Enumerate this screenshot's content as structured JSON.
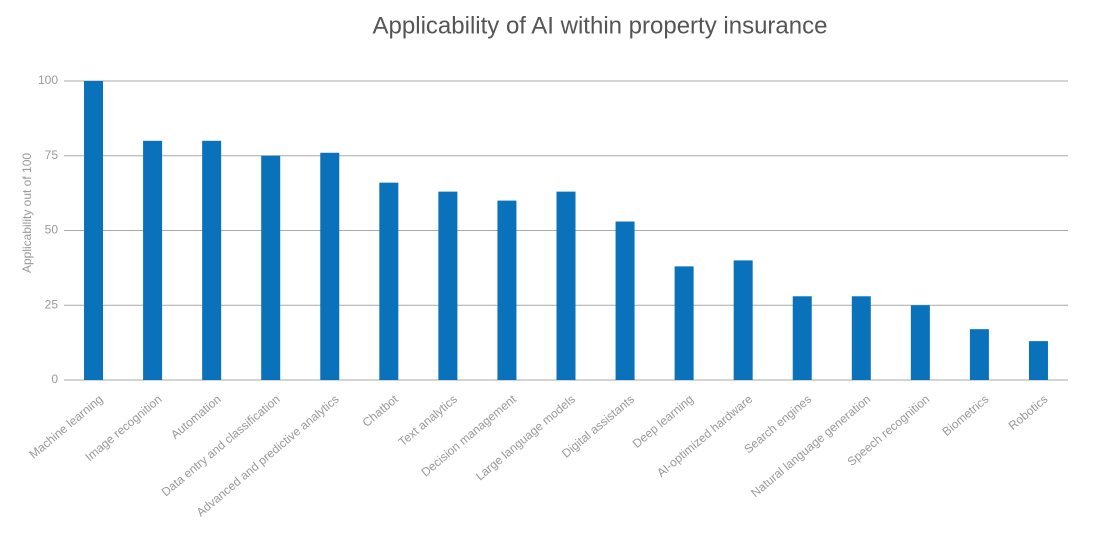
{
  "chart_data": {
    "type": "bar",
    "title": "Applicability of AI within property insurance",
    "y_label": "Applicability out of 100",
    "categories": [
      "Machine learning",
      "Image recognition",
      "Automation",
      "Data entry and classification",
      "Advanced and predictive analytics",
      "Chatbot",
      "Text analytics",
      "Decision management",
      "Large language models",
      "Digital assistants",
      "Deep learning",
      "AI-optimized hardware",
      "Search engines",
      "Natural language generation",
      "Speech recognition",
      "Biometrics",
      "Robotics"
    ],
    "values": [
      100,
      80,
      80,
      75,
      76,
      66,
      63,
      60,
      63,
      53,
      38,
      40,
      28,
      28,
      25,
      17,
      13
    ],
    "color": "#0a72ba",
    "ylim": [
      0,
      100
    ],
    "yticks": [
      0,
      25,
      50,
      75,
      100
    ],
    "grid": true
  }
}
